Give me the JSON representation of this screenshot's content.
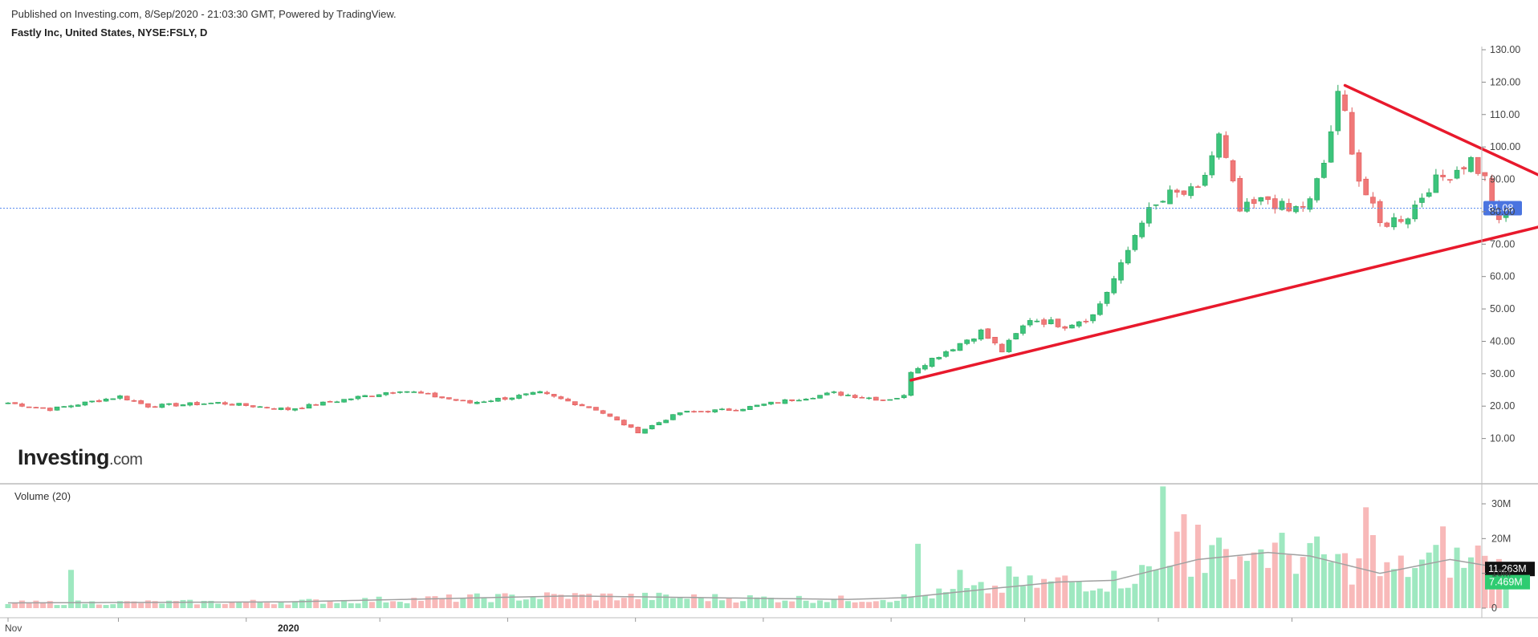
{
  "header": {
    "published": "Published on Investing.com, 8/Sep/2020 - 21:03:30 GMT, Powered by TradingView.",
    "instrument": "Fastly Inc, United States, NYSE:FSLY, D"
  },
  "logo": {
    "main": "Investing",
    "suffix": ".com"
  },
  "volume_panel": {
    "title": "Volume (20)"
  },
  "colors": {
    "up": "#26a65b",
    "up_fill": "#3cc47c",
    "down": "#e05a5a",
    "down_fill": "#f07878",
    "vol_up": "#9ee8c0",
    "vol_down": "#f8b9b9",
    "trendline": "#e8192c",
    "ma_line": "#a0a0a0",
    "price_line": "#5b8def",
    "badge_price": "#4a74e0",
    "badge_ma": "#111111",
    "badge_vol": "#2ecc71"
  },
  "chart_data": [
    {
      "type": "candlestick",
      "title": "Fastly Inc, United States, NYSE:FSLY, D",
      "y_ticks": [
        "130.00",
        "120.00",
        "110.00",
        "100.00",
        "90.00",
        "80.00",
        "70.00",
        "60.00",
        "50.00",
        "40.00",
        "30.00",
        "20.00",
        "10.00"
      ],
      "ylim": [
        0,
        130
      ],
      "x_labels": [
        "Nov",
        "2020"
      ],
      "last_price": "81.08",
      "anchors": [
        {
          "i": 0,
          "close": 21
        },
        {
          "i": 6,
          "close": 19
        },
        {
          "i": 16,
          "close": 23
        },
        {
          "i": 20,
          "close": 20
        },
        {
          "i": 30,
          "close": 21
        },
        {
          "i": 40,
          "close": 19
        },
        {
          "i": 48,
          "close": 22
        },
        {
          "i": 56,
          "close": 25
        },
        {
          "i": 66,
          "close": 21
        },
        {
          "i": 76,
          "close": 24
        },
        {
          "i": 84,
          "close": 19
        },
        {
          "i": 90,
          "close": 12
        },
        {
          "i": 96,
          "close": 18
        },
        {
          "i": 104,
          "close": 19
        },
        {
          "i": 112,
          "close": 22
        },
        {
          "i": 118,
          "close": 24
        },
        {
          "i": 125,
          "close": 22
        },
        {
          "i": 128,
          "close": 23
        },
        {
          "i": 129,
          "close": 31
        },
        {
          "i": 134,
          "close": 37
        },
        {
          "i": 139,
          "close": 43
        },
        {
          "i": 142,
          "close": 37
        },
        {
          "i": 146,
          "close": 47
        },
        {
          "i": 151,
          "close": 45
        },
        {
          "i": 155,
          "close": 48
        },
        {
          "i": 159,
          "close": 63
        },
        {
          "i": 162,
          "close": 78
        },
        {
          "i": 166,
          "close": 85
        },
        {
          "i": 170,
          "close": 86
        },
        {
          "i": 173,
          "close": 103
        },
        {
          "i": 176,
          "close": 80
        },
        {
          "i": 180,
          "close": 84
        },
        {
          "i": 183,
          "close": 80
        },
        {
          "i": 186,
          "close": 83
        },
        {
          "i": 188,
          "close": 95
        },
        {
          "i": 190,
          "close": 115
        },
        {
          "i": 191,
          "close": 110
        },
        {
          "i": 193,
          "close": 90
        },
        {
          "i": 196,
          "close": 76
        },
        {
          "i": 200,
          "close": 79
        },
        {
          "i": 203,
          "close": 88
        },
        {
          "i": 206,
          "close": 92
        },
        {
          "i": 209,
          "close": 96
        },
        {
          "i": 211,
          "close": 90
        },
        {
          "i": 213,
          "close": 76
        },
        {
          "i": 214,
          "close": 81
        }
      ],
      "trendlines": [
        {
          "from": {
            "i": 129,
            "price": 28
          },
          "to": {
            "i": 220,
            "price": 76
          }
        },
        {
          "from": {
            "i": 191,
            "price": 119
          },
          "to": {
            "i": 220,
            "price": 90
          }
        }
      ]
    },
    {
      "type": "bar",
      "title": "Volume (20)",
      "y_ticks": [
        "30M",
        "20M",
        "10M",
        "0"
      ],
      "ylim": [
        0,
        36
      ],
      "last_ma": "11.263M",
      "last_volume": "7.469M",
      "ma_anchors": [
        {
          "i": 0,
          "v": 1.5
        },
        {
          "i": 40,
          "v": 1.8
        },
        {
          "i": 80,
          "v": 3.5
        },
        {
          "i": 120,
          "v": 2.5
        },
        {
          "i": 128,
          "v": 3
        },
        {
          "i": 140,
          "v": 5.5
        },
        {
          "i": 150,
          "v": 7.5
        },
        {
          "i": 158,
          "v": 8
        },
        {
          "i": 170,
          "v": 14
        },
        {
          "i": 180,
          "v": 16
        },
        {
          "i": 186,
          "v": 15
        },
        {
          "i": 196,
          "v": 10
        },
        {
          "i": 206,
          "v": 14
        },
        {
          "i": 212,
          "v": 12
        },
        {
          "i": 216,
          "v": 11.3
        }
      ],
      "spikes": [
        {
          "i": 9,
          "v": 11
        },
        {
          "i": 130,
          "v": 18.5
        },
        {
          "i": 136,
          "v": 11
        },
        {
          "i": 143,
          "v": 12
        },
        {
          "i": 165,
          "v": 35
        },
        {
          "i": 167,
          "v": 22
        },
        {
          "i": 168,
          "v": 27
        },
        {
          "i": 170,
          "v": 24
        },
        {
          "i": 178,
          "v": 16
        },
        {
          "i": 194,
          "v": 29
        },
        {
          "i": 195,
          "v": 21
        },
        {
          "i": 205,
          "v": 23.5
        },
        {
          "i": 210,
          "v": 18
        }
      ]
    }
  ]
}
